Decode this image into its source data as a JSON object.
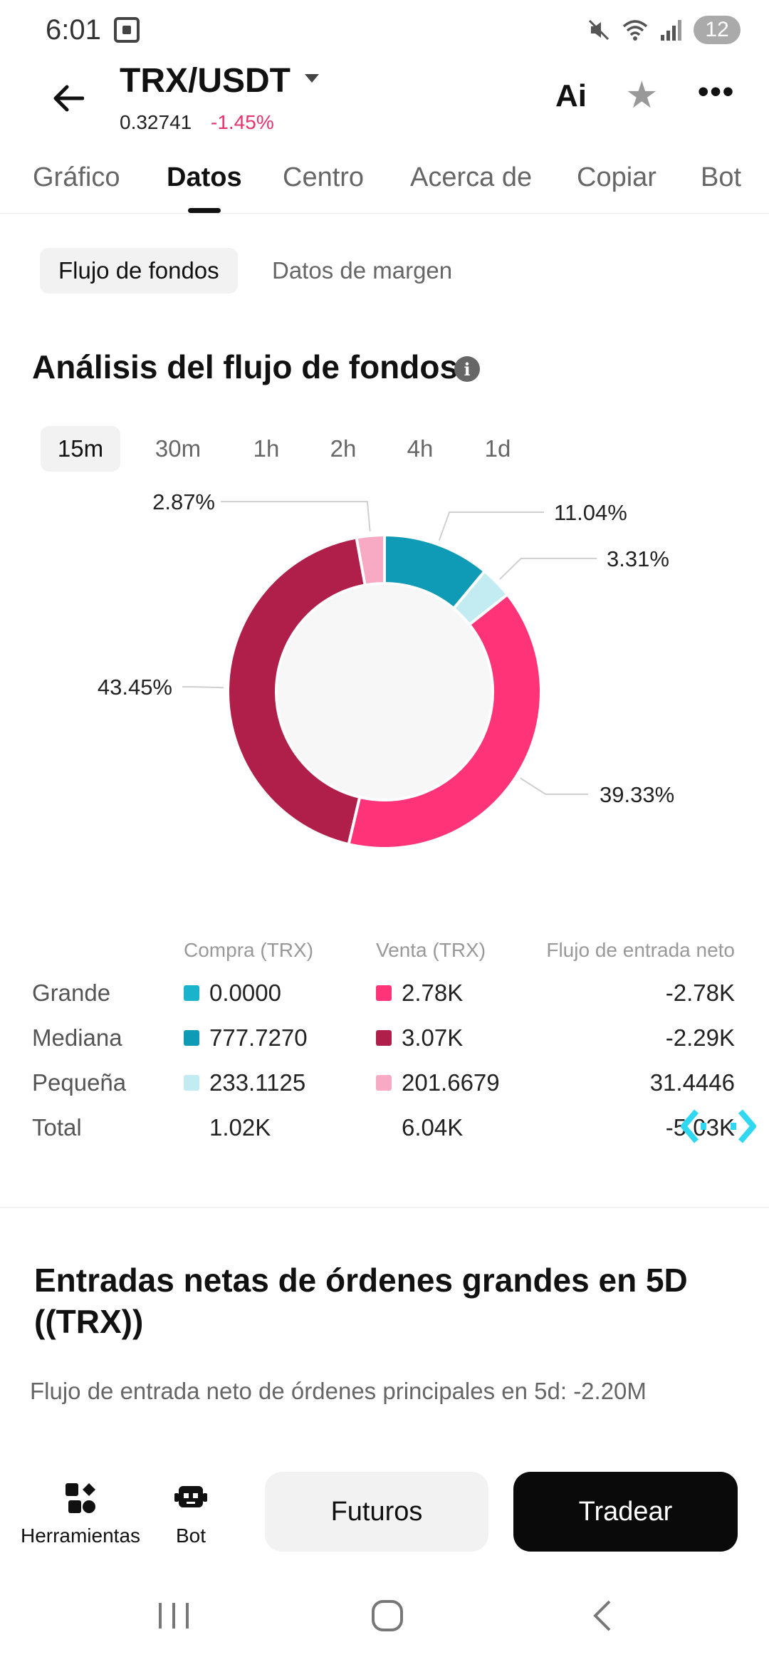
{
  "status_bar": {
    "time": "6:01",
    "battery_badge": "12",
    "icons": [
      "screenshot-icon",
      "mute-icon",
      "wifi-icon",
      "signal-icon"
    ]
  },
  "header": {
    "pair": "TRX/USDT",
    "price": "0.32741",
    "change": "-1.45%",
    "ai_label": "Ai",
    "more_label": "•••"
  },
  "tabs": [
    {
      "label": "Gráfico"
    },
    {
      "label": "Datos"
    },
    {
      "label": "Centro"
    },
    {
      "label": "Acerca de"
    },
    {
      "label": "Copiar"
    },
    {
      "label": "Bot"
    }
  ],
  "sub_tabs": [
    {
      "label": "Flujo de fondos"
    },
    {
      "label": "Datos de margen"
    }
  ],
  "section_title": "Análisis del flujo de fondos",
  "intervals": [
    {
      "label": "15m"
    },
    {
      "label": "30m"
    },
    {
      "label": "1h"
    },
    {
      "label": "2h"
    },
    {
      "label": "4h"
    },
    {
      "label": "1d"
    }
  ],
  "colors": {
    "large_buy": "#1ab3cc",
    "medium_buy": "#0f9ab5",
    "small_buy": "#c2ecf2",
    "large_sell": "#ff3377",
    "medium_sell": "#b01e4a",
    "small_sell": "#f8a9c4",
    "negative": "#e6336b"
  },
  "chart_data": {
    "type": "pie",
    "style": "donut",
    "slices": [
      {
        "label": "11.04%",
        "value": 11.04,
        "color": "#0f9ab5"
      },
      {
        "label": "3.31%",
        "value": 3.31,
        "color": "#c2ecf2"
      },
      {
        "label": "39.33%",
        "value": 39.33,
        "color": "#ff3377"
      },
      {
        "label": "43.45%",
        "value": 43.45,
        "color": "#b01e4a"
      },
      {
        "label": "2.87%",
        "value": 2.87,
        "color": "#f8a9c4"
      }
    ]
  },
  "table": {
    "headers": {
      "buy": "Compra (TRX)",
      "sell": "Venta (TRX)",
      "net": "Flujo de entrada neto"
    },
    "rows": [
      {
        "label": "Grande",
        "buy": "0.0000",
        "sell": "2.78K",
        "net": "-2.78K",
        "buy_color": "#1ab3cc",
        "sell_color": "#ff3377"
      },
      {
        "label": "Mediana",
        "buy": "777.7270",
        "sell": "3.07K",
        "net": "-2.29K",
        "buy_color": "#0f9ab5",
        "sell_color": "#b01e4a"
      },
      {
        "label": "Pequeña",
        "buy": "233.1125",
        "sell": "201.6679",
        "net": "31.4446",
        "buy_color": "#c2ecf2",
        "sell_color": "#f8a9c4"
      },
      {
        "label": "Total",
        "buy": "1.02K",
        "sell": "6.04K",
        "net": "-5.03K"
      }
    ]
  },
  "large_orders": {
    "title": "Entradas netas de órdenes grandes en 5D ((TRX))",
    "subtitle": "Flujo de entrada neto de órdenes principales en 5d: -2.20M"
  },
  "bottom_bar": {
    "tools_label": "Herramientas",
    "bot_label": "Bot",
    "futures_label": "Futuros",
    "trade_label": "Tradear"
  }
}
